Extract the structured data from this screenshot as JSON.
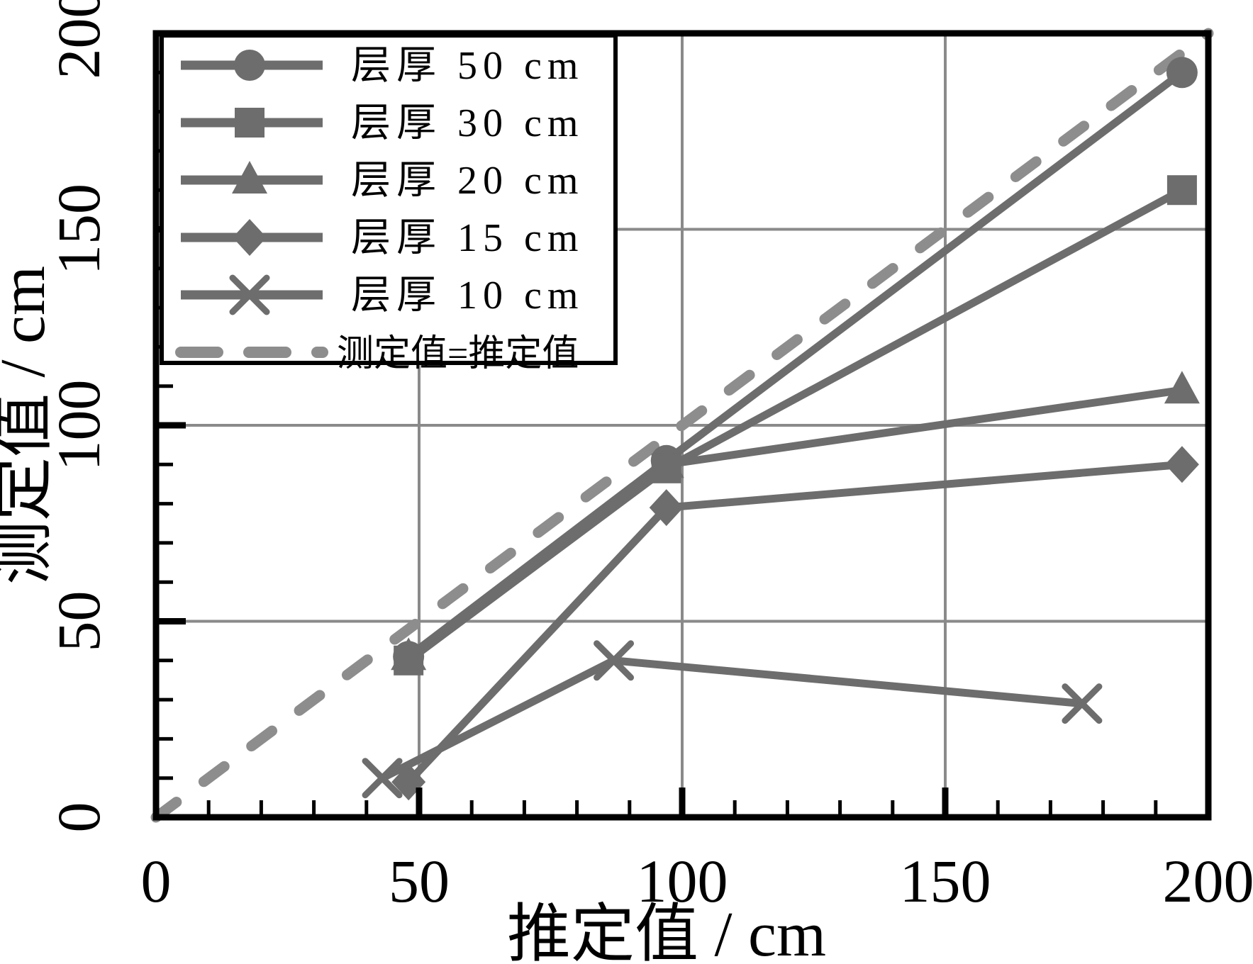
{
  "figure": {
    "background": "#ffffff",
    "axis_color": "#000000",
    "grid_color": "#8a8a8a",
    "series_color": "#6d6d6d",
    "identity_color": "#8d8d8d",
    "legend_border_color": "#000000",
    "legend_background": "#ffffff"
  },
  "chart_data": {
    "type": "line",
    "title": "",
    "xlabel": "推定值 / cm",
    "ylabel": "测定值 / cm",
    "xlim": [
      0,
      200
    ],
    "ylim": [
      0,
      200
    ],
    "xticks": [
      0,
      50,
      100,
      150,
      200
    ],
    "yticks": [
      0,
      50,
      100,
      150,
      200
    ],
    "minor_tick_step": 10,
    "grid": true,
    "gridline_values": [
      50,
      100,
      150
    ],
    "legend_position": "upper-left",
    "series": [
      {
        "name": "层厚 50 cm",
        "marker": "circle",
        "x": [
          48,
          97,
          195
        ],
        "y": [
          41,
          91,
          190
        ]
      },
      {
        "name": "层厚 30 cm",
        "marker": "square",
        "x": [
          48,
          97,
          195
        ],
        "y": [
          40,
          89,
          160
        ]
      },
      {
        "name": "层厚 20 cm",
        "marker": "triangle",
        "x": [
          48,
          97,
          195
        ],
        "y": [
          41,
          90,
          109
        ]
      },
      {
        "name": "层厚 15 cm",
        "marker": "diamond",
        "x": [
          48,
          97,
          195
        ],
        "y": [
          9,
          79,
          90
        ]
      },
      {
        "name": "层厚 10 cm",
        "marker": "x",
        "x": [
          43,
          87,
          176
        ],
        "y": [
          10,
          40,
          29
        ]
      }
    ],
    "reference_line": {
      "name": "测定值=推定值",
      "style": "dashed",
      "from": [
        0,
        0
      ],
      "to": [
        200,
        200
      ]
    }
  }
}
